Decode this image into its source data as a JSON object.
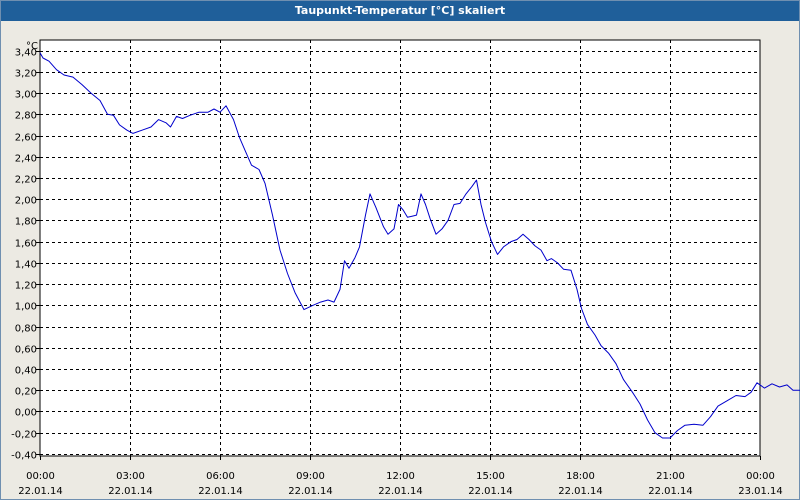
{
  "window": {
    "title": "Taupunkt-Temperatur [°C] skaliert"
  },
  "chart_data": {
    "type": "line",
    "ylabel": "°C",
    "ylim": [
      -0.4,
      3.5
    ],
    "xlim_hours": [
      0,
      24
    ],
    "y_ticks": [
      -0.4,
      -0.2,
      0.0,
      0.2,
      0.4,
      0.6,
      0.8,
      1.0,
      1.2,
      1.4,
      1.6,
      1.8,
      2.0,
      2.2,
      2.4,
      2.6,
      2.8,
      3.0,
      3.2,
      3.4
    ],
    "y_tick_labels": [
      "-0,40",
      "-0,20",
      "0,00",
      "0,20",
      "0,40",
      "0,60",
      "0,80",
      "1,00",
      "1,20",
      "1,40",
      "1,60",
      "1,80",
      "2,00",
      "2,20",
      "2,40",
      "2,60",
      "2,80",
      "3,00",
      "3,20",
      "3,40"
    ],
    "x_ticks": [
      {
        "time": "00:00",
        "date": "22.01.14"
      },
      {
        "time": "03:00",
        "date": "22.01.14"
      },
      {
        "time": "06:00",
        "date": "22.01.14"
      },
      {
        "time": "09:00",
        "date": "22.01.14"
      },
      {
        "time": "12:00",
        "date": "22.01.14"
      },
      {
        "time": "15:00",
        "date": "22.01.14"
      },
      {
        "time": "18:00",
        "date": "22.01.14"
      },
      {
        "time": "21:00",
        "date": "22.01.14"
      },
      {
        "time": "00:00",
        "date": "23.01.14"
      }
    ],
    "grid": true,
    "series": [
      {
        "color": "#0000cc",
        "points": [
          [
            0.0,
            3.38
          ],
          [
            0.1,
            3.33
          ],
          [
            0.3,
            3.3
          ],
          [
            0.55,
            3.22
          ],
          [
            0.8,
            3.17
          ],
          [
            1.1,
            3.15
          ],
          [
            1.4,
            3.08
          ],
          [
            1.7,
            3.0
          ],
          [
            2.0,
            2.93
          ],
          [
            2.25,
            2.8
          ],
          [
            2.45,
            2.79
          ],
          [
            2.65,
            2.7
          ],
          [
            2.9,
            2.65
          ],
          [
            3.1,
            2.62
          ],
          [
            3.4,
            2.65
          ],
          [
            3.7,
            2.68
          ],
          [
            3.95,
            2.75
          ],
          [
            4.2,
            2.72
          ],
          [
            4.35,
            2.68
          ],
          [
            4.55,
            2.78
          ],
          [
            4.75,
            2.76
          ],
          [
            5.0,
            2.79
          ],
          [
            5.3,
            2.82
          ],
          [
            5.6,
            2.82
          ],
          [
            5.8,
            2.85
          ],
          [
            6.0,
            2.82
          ],
          [
            6.2,
            2.88
          ],
          [
            6.45,
            2.75
          ],
          [
            6.65,
            2.58
          ],
          [
            6.85,
            2.45
          ],
          [
            7.05,
            2.32
          ],
          [
            7.3,
            2.28
          ],
          [
            7.5,
            2.15
          ],
          [
            7.75,
            1.85
          ],
          [
            8.0,
            1.52
          ],
          [
            8.25,
            1.3
          ],
          [
            8.5,
            1.12
          ],
          [
            8.8,
            0.96
          ],
          [
            9.1,
            1.0
          ],
          [
            9.35,
            1.03
          ],
          [
            9.6,
            1.05
          ],
          [
            9.8,
            1.03
          ],
          [
            10.0,
            1.15
          ],
          [
            10.15,
            1.42
          ],
          [
            10.3,
            1.35
          ],
          [
            10.5,
            1.45
          ],
          [
            10.65,
            1.55
          ],
          [
            10.85,
            1.85
          ],
          [
            11.0,
            2.05
          ],
          [
            11.2,
            1.92
          ],
          [
            11.45,
            1.74
          ],
          [
            11.6,
            1.67
          ],
          [
            11.8,
            1.72
          ],
          [
            11.95,
            1.95
          ],
          [
            12.1,
            1.9
          ],
          [
            12.25,
            1.83
          ],
          [
            12.4,
            1.84
          ],
          [
            12.55,
            1.85
          ],
          [
            12.7,
            2.05
          ],
          [
            12.85,
            1.95
          ],
          [
            13.0,
            1.82
          ],
          [
            13.2,
            1.67
          ],
          [
            13.4,
            1.72
          ],
          [
            13.6,
            1.8
          ],
          [
            13.8,
            1.95
          ],
          [
            14.0,
            1.96
          ],
          [
            14.2,
            2.05
          ],
          [
            14.4,
            2.12
          ],
          [
            14.55,
            2.18
          ],
          [
            14.7,
            1.95
          ],
          [
            14.85,
            1.78
          ],
          [
            15.05,
            1.6
          ],
          [
            15.25,
            1.48
          ],
          [
            15.45,
            1.55
          ],
          [
            15.7,
            1.6
          ],
          [
            15.9,
            1.62
          ],
          [
            16.1,
            1.67
          ],
          [
            16.3,
            1.62
          ],
          [
            16.5,
            1.56
          ],
          [
            16.7,
            1.52
          ],
          [
            16.9,
            1.42
          ],
          [
            17.05,
            1.44
          ],
          [
            17.25,
            1.4
          ],
          [
            17.45,
            1.34
          ],
          [
            17.7,
            1.33
          ],
          [
            17.9,
            1.15
          ],
          [
            18.05,
            0.97
          ],
          [
            18.25,
            0.82
          ],
          [
            18.5,
            0.72
          ],
          [
            18.7,
            0.62
          ],
          [
            18.95,
            0.55
          ],
          [
            19.2,
            0.45
          ],
          [
            19.45,
            0.3
          ],
          [
            19.75,
            0.18
          ],
          [
            20.0,
            0.07
          ],
          [
            20.25,
            -0.08
          ],
          [
            20.5,
            -0.2
          ],
          [
            20.75,
            -0.25
          ],
          [
            21.0,
            -0.25
          ],
          [
            21.25,
            -0.18
          ],
          [
            21.5,
            -0.13
          ],
          [
            21.8,
            -0.12
          ],
          [
            22.1,
            -0.13
          ],
          [
            22.35,
            -0.05
          ],
          [
            22.6,
            0.05
          ],
          [
            22.9,
            0.1
          ],
          [
            23.2,
            0.15
          ],
          [
            23.5,
            0.14
          ],
          [
            23.7,
            0.18
          ],
          [
            23.9,
            0.27
          ],
          [
            24.15,
            0.22
          ],
          [
            24.4,
            0.26
          ],
          [
            24.65,
            0.23
          ],
          [
            24.9,
            0.25
          ],
          [
            25.1,
            0.2
          ],
          [
            25.35,
            0.2
          ]
        ]
      }
    ]
  }
}
